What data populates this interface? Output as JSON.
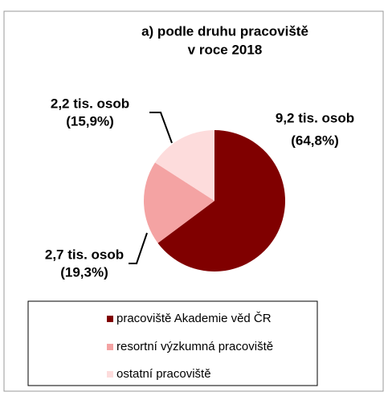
{
  "chart_data": {
    "type": "pie",
    "title": "a) podle druhu pracoviště",
    "subtitle": "v roce 2018",
    "categories": [
      "pracoviště Akademie věd ČR",
      "resortní výzkumná pracoviště",
      "ostatní pracoviště"
    ],
    "values": [
      64.8,
      19.3,
      15.9
    ],
    "value_labels": [
      "(64,8%)",
      "(19,3%)",
      "(15,9%)"
    ],
    "annotations": [
      "9,2 tis. osob",
      "2,7 tis. osob",
      "2,2 tis. osob"
    ],
    "colors": [
      "#800000",
      "#f4a3a3",
      "#fddcdc"
    ],
    "legend": "bottom"
  }
}
